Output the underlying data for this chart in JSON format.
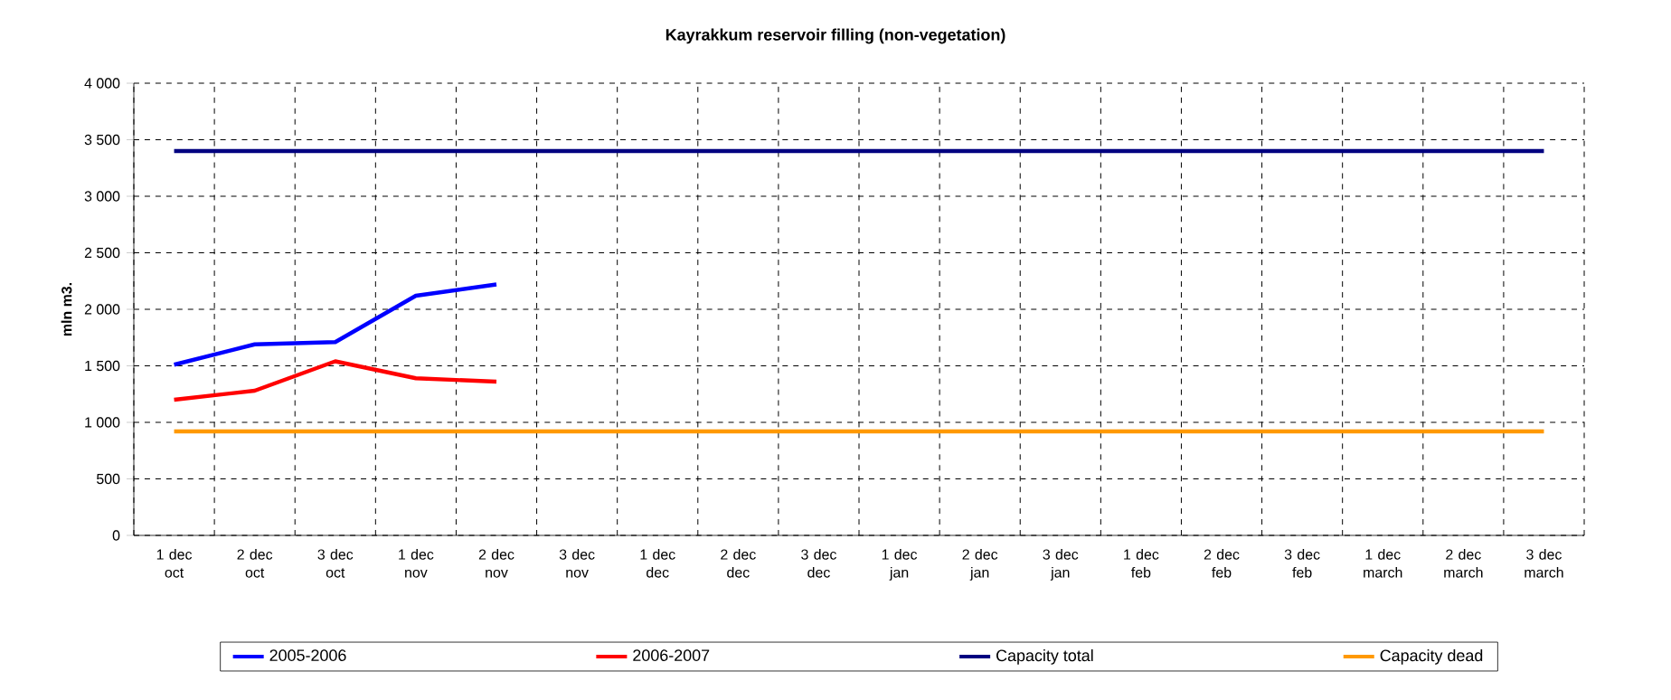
{
  "chart_data": {
    "type": "line",
    "title": "Kayrakkum reservoir filling  (non-vegetation)",
    "ylabel": "mln m3.",
    "categories": [
      "1 dec oct",
      "2 dec oct",
      "3 dec oct",
      "1 dec nov",
      "2 dec nov",
      "3 dec nov",
      "1 dec dec",
      "2 dec dec",
      "3 dec dec",
      "1 dec jan",
      "2 dec jan",
      "3 dec jan",
      "1 dec feb",
      "2 dec feb",
      "3 dec feb",
      "1 dec march",
      "2 dec march",
      "3 dec march"
    ],
    "series": [
      {
        "name": "2005-2006",
        "color": "#0000ff",
        "values": [
          1510,
          1690,
          1710,
          2120,
          2220,
          null,
          null,
          null,
          null,
          null,
          null,
          null,
          null,
          null,
          null,
          null,
          null,
          null
        ]
      },
      {
        "name": "2006-2007",
        "color": "#ff0000",
        "values": [
          1200,
          1280,
          1540,
          1390,
          1360,
          null,
          null,
          null,
          null,
          null,
          null,
          null,
          null,
          null,
          null,
          null,
          null,
          null
        ]
      },
      {
        "name": "Capacity total",
        "color": "#000080",
        "values": [
          3400,
          3400,
          3400,
          3400,
          3400,
          3400,
          3400,
          3400,
          3400,
          3400,
          3400,
          3400,
          3400,
          3400,
          3400,
          3400,
          3400,
          3400
        ]
      },
      {
        "name": "Capacity dead",
        "color": "#ff9900",
        "values": [
          920,
          920,
          920,
          920,
          920,
          920,
          920,
          920,
          920,
          920,
          920,
          920,
          920,
          920,
          920,
          920,
          920,
          920
        ]
      }
    ],
    "ylim": [
      0,
      4000
    ],
    "yticks": [
      {
        "value": 0,
        "label": "0"
      },
      {
        "value": 500,
        "label": "500"
      },
      {
        "value": 1000,
        "label": "1 000"
      },
      {
        "value": 1500,
        "label": "1 500"
      },
      {
        "value": 2000,
        "label": "2 000"
      },
      {
        "value": 2500,
        "label": "2 500"
      },
      {
        "value": 3000,
        "label": "3 000"
      },
      {
        "value": 3500,
        "label": "3 500"
      },
      {
        "value": 4000,
        "label": "4 000"
      }
    ],
    "grid": true,
    "legend": "bottom",
    "marker": "none",
    "line_style": "solid"
  }
}
